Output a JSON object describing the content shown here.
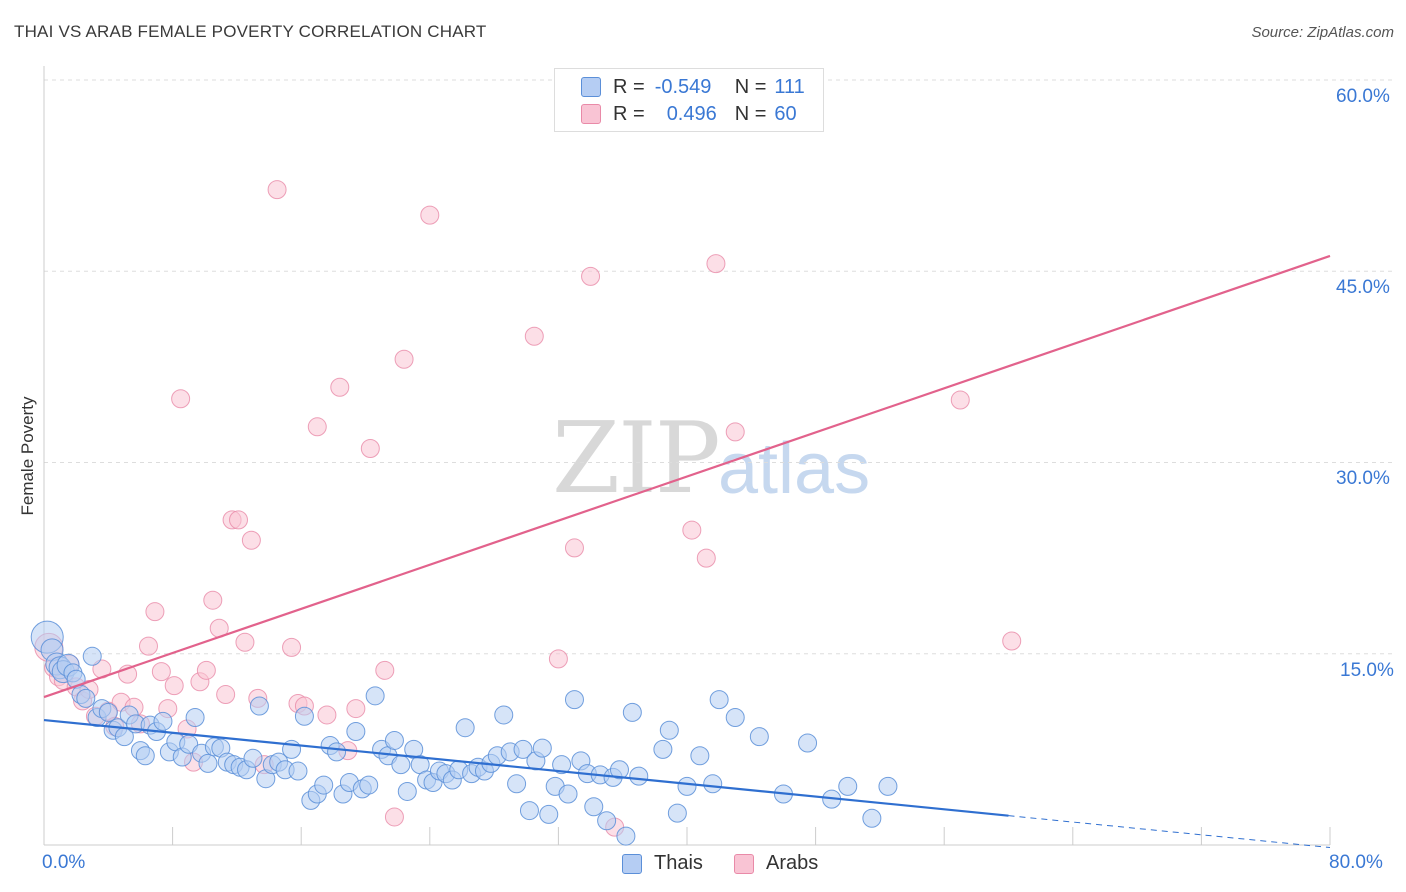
{
  "title": "THAI VS ARAB FEMALE POVERTY CORRELATION CHART",
  "source": "Source: ZipAtlas.com",
  "watermark": {
    "zip": "ZIP",
    "atlas": "atlas"
  },
  "legend_top": [
    {
      "r_label": "R =",
      "r_value": "-0.549",
      "n_label": "N =",
      "n_value": "111"
    },
    {
      "r_label": "R =",
      "r_value": "0.496",
      "n_label": "N =",
      "n_value": "60"
    }
  ],
  "legend_bottom": [
    {
      "label": "Thais"
    },
    {
      "label": "Arabs"
    }
  ],
  "colors": {
    "thai_fill": "#b5cdf3",
    "thai_stroke": "#5b8fd8",
    "thai_line": "#2f6fd0",
    "arab_fill": "#f9c4d4",
    "arab_stroke": "#e98aa8",
    "arab_line": "#e2628c",
    "axis_text": "#3a78d4",
    "grid": "#dddddd"
  },
  "chart_data": {
    "type": "scatter",
    "title": "THAI VS ARAB FEMALE POVERTY CORRELATION CHART",
    "xlabel": "",
    "ylabel": "Female Poverty",
    "xlim": [
      0,
      80
    ],
    "ylim": [
      0,
      63
    ],
    "x_tick_labels": [
      "0.0%",
      "80.0%"
    ],
    "y_ticks": [
      15,
      30,
      45,
      60
    ],
    "y_tick_labels": [
      "15.0%",
      "30.0%",
      "45.0%",
      "60.0%"
    ],
    "grid": "horizontal dashed",
    "legend_placement": "top-center and bottom",
    "series": [
      {
        "name": "Thais",
        "r": -0.549,
        "n": 111,
        "trend": {
          "x": [
            0,
            60
          ],
          "y": [
            9.8,
            2.3
          ]
        },
        "trend_dashed": {
          "x": [
            60,
            80
          ],
          "y": [
            2.3,
            -0.2
          ]
        },
        "points": [
          [
            0.2,
            16.3
          ],
          [
            0.5,
            15.3
          ],
          [
            0.8,
            14.2
          ],
          [
            1.0,
            13.9
          ],
          [
            1.2,
            13.6
          ],
          [
            1.5,
            14.1
          ],
          [
            1.8,
            13.5
          ],
          [
            2.0,
            13.0
          ],
          [
            2.3,
            11.8
          ],
          [
            2.6,
            11.5
          ],
          [
            3.0,
            14.8
          ],
          [
            3.3,
            10.0
          ],
          [
            3.6,
            10.7
          ],
          [
            4.0,
            10.4
          ],
          [
            4.3,
            9.0
          ],
          [
            4.6,
            9.2
          ],
          [
            5.0,
            8.5
          ],
          [
            5.3,
            10.2
          ],
          [
            5.7,
            9.5
          ],
          [
            6.0,
            7.4
          ],
          [
            6.3,
            7.0
          ],
          [
            6.6,
            9.4
          ],
          [
            7.0,
            8.9
          ],
          [
            7.4,
            9.7
          ],
          [
            7.8,
            7.3
          ],
          [
            8.2,
            8.1
          ],
          [
            8.6,
            6.9
          ],
          [
            9.0,
            7.9
          ],
          [
            9.4,
            10.0
          ],
          [
            9.8,
            7.2
          ],
          [
            10.2,
            6.4
          ],
          [
            10.6,
            7.7
          ],
          [
            11.0,
            7.6
          ],
          [
            11.4,
            6.5
          ],
          [
            11.8,
            6.3
          ],
          [
            12.2,
            6.1
          ],
          [
            12.6,
            5.9
          ],
          [
            13.0,
            6.8
          ],
          [
            13.4,
            10.9
          ],
          [
            13.8,
            5.2
          ],
          [
            14.2,
            6.3
          ],
          [
            14.6,
            6.5
          ],
          [
            15.0,
            5.9
          ],
          [
            15.4,
            7.5
          ],
          [
            15.8,
            5.8
          ],
          [
            16.2,
            10.1
          ],
          [
            16.6,
            3.5
          ],
          [
            17.0,
            4.0
          ],
          [
            17.4,
            4.7
          ],
          [
            17.8,
            7.8
          ],
          [
            18.2,
            7.3
          ],
          [
            18.6,
            4.0
          ],
          [
            19.0,
            4.9
          ],
          [
            19.4,
            8.9
          ],
          [
            19.8,
            4.4
          ],
          [
            20.2,
            4.7
          ],
          [
            20.6,
            11.7
          ],
          [
            21.0,
            7.5
          ],
          [
            21.4,
            7.0
          ],
          [
            21.8,
            8.2
          ],
          [
            22.2,
            6.3
          ],
          [
            22.6,
            4.2
          ],
          [
            23.0,
            7.5
          ],
          [
            23.4,
            6.3
          ],
          [
            23.8,
            5.1
          ],
          [
            24.2,
            4.9
          ],
          [
            24.6,
            5.8
          ],
          [
            25.0,
            5.6
          ],
          [
            25.4,
            5.1
          ],
          [
            25.8,
            5.9
          ],
          [
            26.2,
            9.2
          ],
          [
            26.6,
            5.6
          ],
          [
            27.0,
            6.1
          ],
          [
            27.4,
            5.8
          ],
          [
            27.8,
            6.4
          ],
          [
            28.2,
            7.0
          ],
          [
            28.6,
            10.2
          ],
          [
            29.0,
            7.3
          ],
          [
            29.4,
            4.8
          ],
          [
            29.8,
            7.5
          ],
          [
            30.2,
            2.7
          ],
          [
            30.6,
            6.6
          ],
          [
            31.0,
            7.6
          ],
          [
            31.4,
            2.4
          ],
          [
            31.8,
            4.6
          ],
          [
            32.2,
            6.3
          ],
          [
            32.6,
            4.0
          ],
          [
            33.0,
            11.4
          ],
          [
            33.4,
            6.6
          ],
          [
            33.8,
            5.6
          ],
          [
            34.2,
            3.0
          ],
          [
            34.6,
            5.5
          ],
          [
            35.0,
            1.9
          ],
          [
            35.4,
            5.3
          ],
          [
            35.8,
            5.9
          ],
          [
            36.2,
            0.7
          ],
          [
            36.6,
            10.4
          ],
          [
            37.0,
            5.4
          ],
          [
            38.5,
            7.5
          ],
          [
            38.9,
            9.0
          ],
          [
            39.4,
            2.5
          ],
          [
            40.0,
            4.6
          ],
          [
            40.8,
            7.0
          ],
          [
            41.6,
            4.8
          ],
          [
            42.0,
            11.4
          ],
          [
            43.0,
            10.0
          ],
          [
            44.5,
            8.5
          ],
          [
            46.0,
            4.0
          ],
          [
            47.5,
            8.0
          ],
          [
            49.0,
            3.6
          ],
          [
            50.0,
            4.6
          ],
          [
            51.5,
            2.1
          ],
          [
            52.5,
            4.6
          ]
        ]
      },
      {
        "name": "Arabs",
        "r": 0.496,
        "n": 60,
        "trend": {
          "x": [
            0,
            80
          ],
          "y": [
            11.6,
            46.2
          ]
        },
        "points": [
          [
            0.3,
            15.5
          ],
          [
            0.6,
            13.9
          ],
          [
            0.9,
            13.2
          ],
          [
            1.2,
            12.9
          ],
          [
            1.6,
            14.2
          ],
          [
            2.0,
            12.4
          ],
          [
            2.4,
            11.3
          ],
          [
            2.8,
            12.2
          ],
          [
            3.2,
            10.1
          ],
          [
            3.6,
            13.8
          ],
          [
            4.0,
            10.5
          ],
          [
            4.4,
            9.3
          ],
          [
            4.8,
            11.2
          ],
          [
            5.2,
            13.4
          ],
          [
            5.6,
            10.8
          ],
          [
            6.0,
            9.5
          ],
          [
            6.5,
            15.6
          ],
          [
            6.9,
            18.3
          ],
          [
            7.3,
            13.6
          ],
          [
            7.7,
            10.7
          ],
          [
            8.1,
            12.5
          ],
          [
            8.5,
            35.0
          ],
          [
            8.9,
            9.1
          ],
          [
            9.3,
            6.5
          ],
          [
            9.7,
            12.8
          ],
          [
            10.1,
            13.7
          ],
          [
            10.5,
            19.2
          ],
          [
            10.9,
            17.0
          ],
          [
            11.3,
            11.8
          ],
          [
            11.7,
            25.5
          ],
          [
            12.1,
            25.5
          ],
          [
            12.5,
            15.9
          ],
          [
            12.9,
            23.9
          ],
          [
            13.3,
            11.5
          ],
          [
            13.7,
            6.3
          ],
          [
            14.5,
            51.4
          ],
          [
            15.4,
            15.5
          ],
          [
            15.8,
            11.1
          ],
          [
            16.2,
            10.9
          ],
          [
            17.0,
            32.8
          ],
          [
            17.6,
            10.2
          ],
          [
            18.4,
            35.9
          ],
          [
            18.9,
            7.4
          ],
          [
            19.4,
            10.7
          ],
          [
            20.3,
            31.1
          ],
          [
            21.2,
            13.7
          ],
          [
            21.8,
            2.2
          ],
          [
            22.4,
            38.1
          ],
          [
            24.0,
            49.4
          ],
          [
            30.5,
            39.9
          ],
          [
            32.0,
            14.6
          ],
          [
            33.0,
            23.3
          ],
          [
            34.0,
            44.6
          ],
          [
            35.5,
            1.4
          ],
          [
            40.3,
            24.7
          ],
          [
            41.2,
            22.5
          ],
          [
            41.8,
            45.6
          ],
          [
            43.0,
            32.4
          ],
          [
            57.0,
            34.9
          ],
          [
            60.2,
            16.0
          ]
        ]
      }
    ]
  }
}
